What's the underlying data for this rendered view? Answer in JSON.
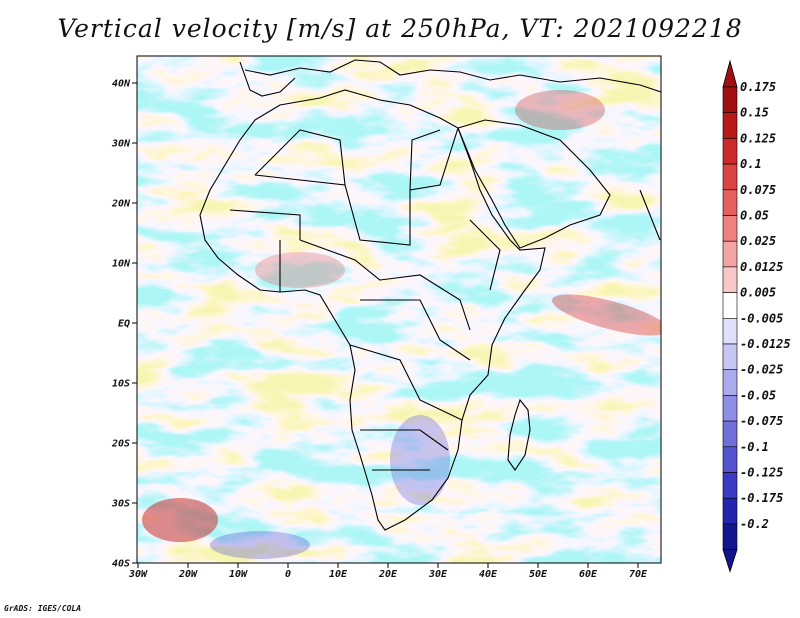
{
  "title": "Vertical velocity [m/s] at 250hPa, VT: 2021092218",
  "credit": "GrADS: IGES/COLA",
  "map": {
    "region": "Africa",
    "lat_labels": [
      "40N",
      "30N",
      "20N",
      "10N",
      "EQ",
      "10S",
      "20S",
      "30S",
      "40S"
    ],
    "lon_labels": [
      "30W",
      "20W",
      "10W",
      "0",
      "10E",
      "20E",
      "30E",
      "40E",
      "50E",
      "60E",
      "70E"
    ]
  },
  "colorbar": {
    "labels": [
      "0.175",
      "0.15",
      "0.125",
      "0.1",
      "0.075",
      "0.05",
      "0.025",
      "0.0125",
      "0.005",
      "-0.005",
      "-0.0125",
      "-0.025",
      "-0.05",
      "-0.075",
      "-0.1",
      "-0.125",
      "-0.175",
      "-0.2"
    ],
    "colors": [
      "#a01010",
      "#b81818",
      "#cc2a2a",
      "#dc4444",
      "#e66060",
      "#ee8080",
      "#f4a4a4",
      "#f8c8c8",
      "#ffffff",
      "#e0e0fc",
      "#c6c6f4",
      "#aaaaee",
      "#8e8ee6",
      "#7070dc",
      "#5454d0",
      "#3a3ac4",
      "#2424b0",
      "#14148e"
    ]
  },
  "chart_data": {
    "type": "heatmap",
    "title": "Vertical velocity [m/s] at 250hPa, VT: 2021092218",
    "variable": "Vertical velocity",
    "units": "m/s",
    "level": "250hPa",
    "valid_time": "2021092218",
    "lon_range": [
      "30W",
      "70E"
    ],
    "lat_range": [
      "40S",
      "40N"
    ]
  }
}
